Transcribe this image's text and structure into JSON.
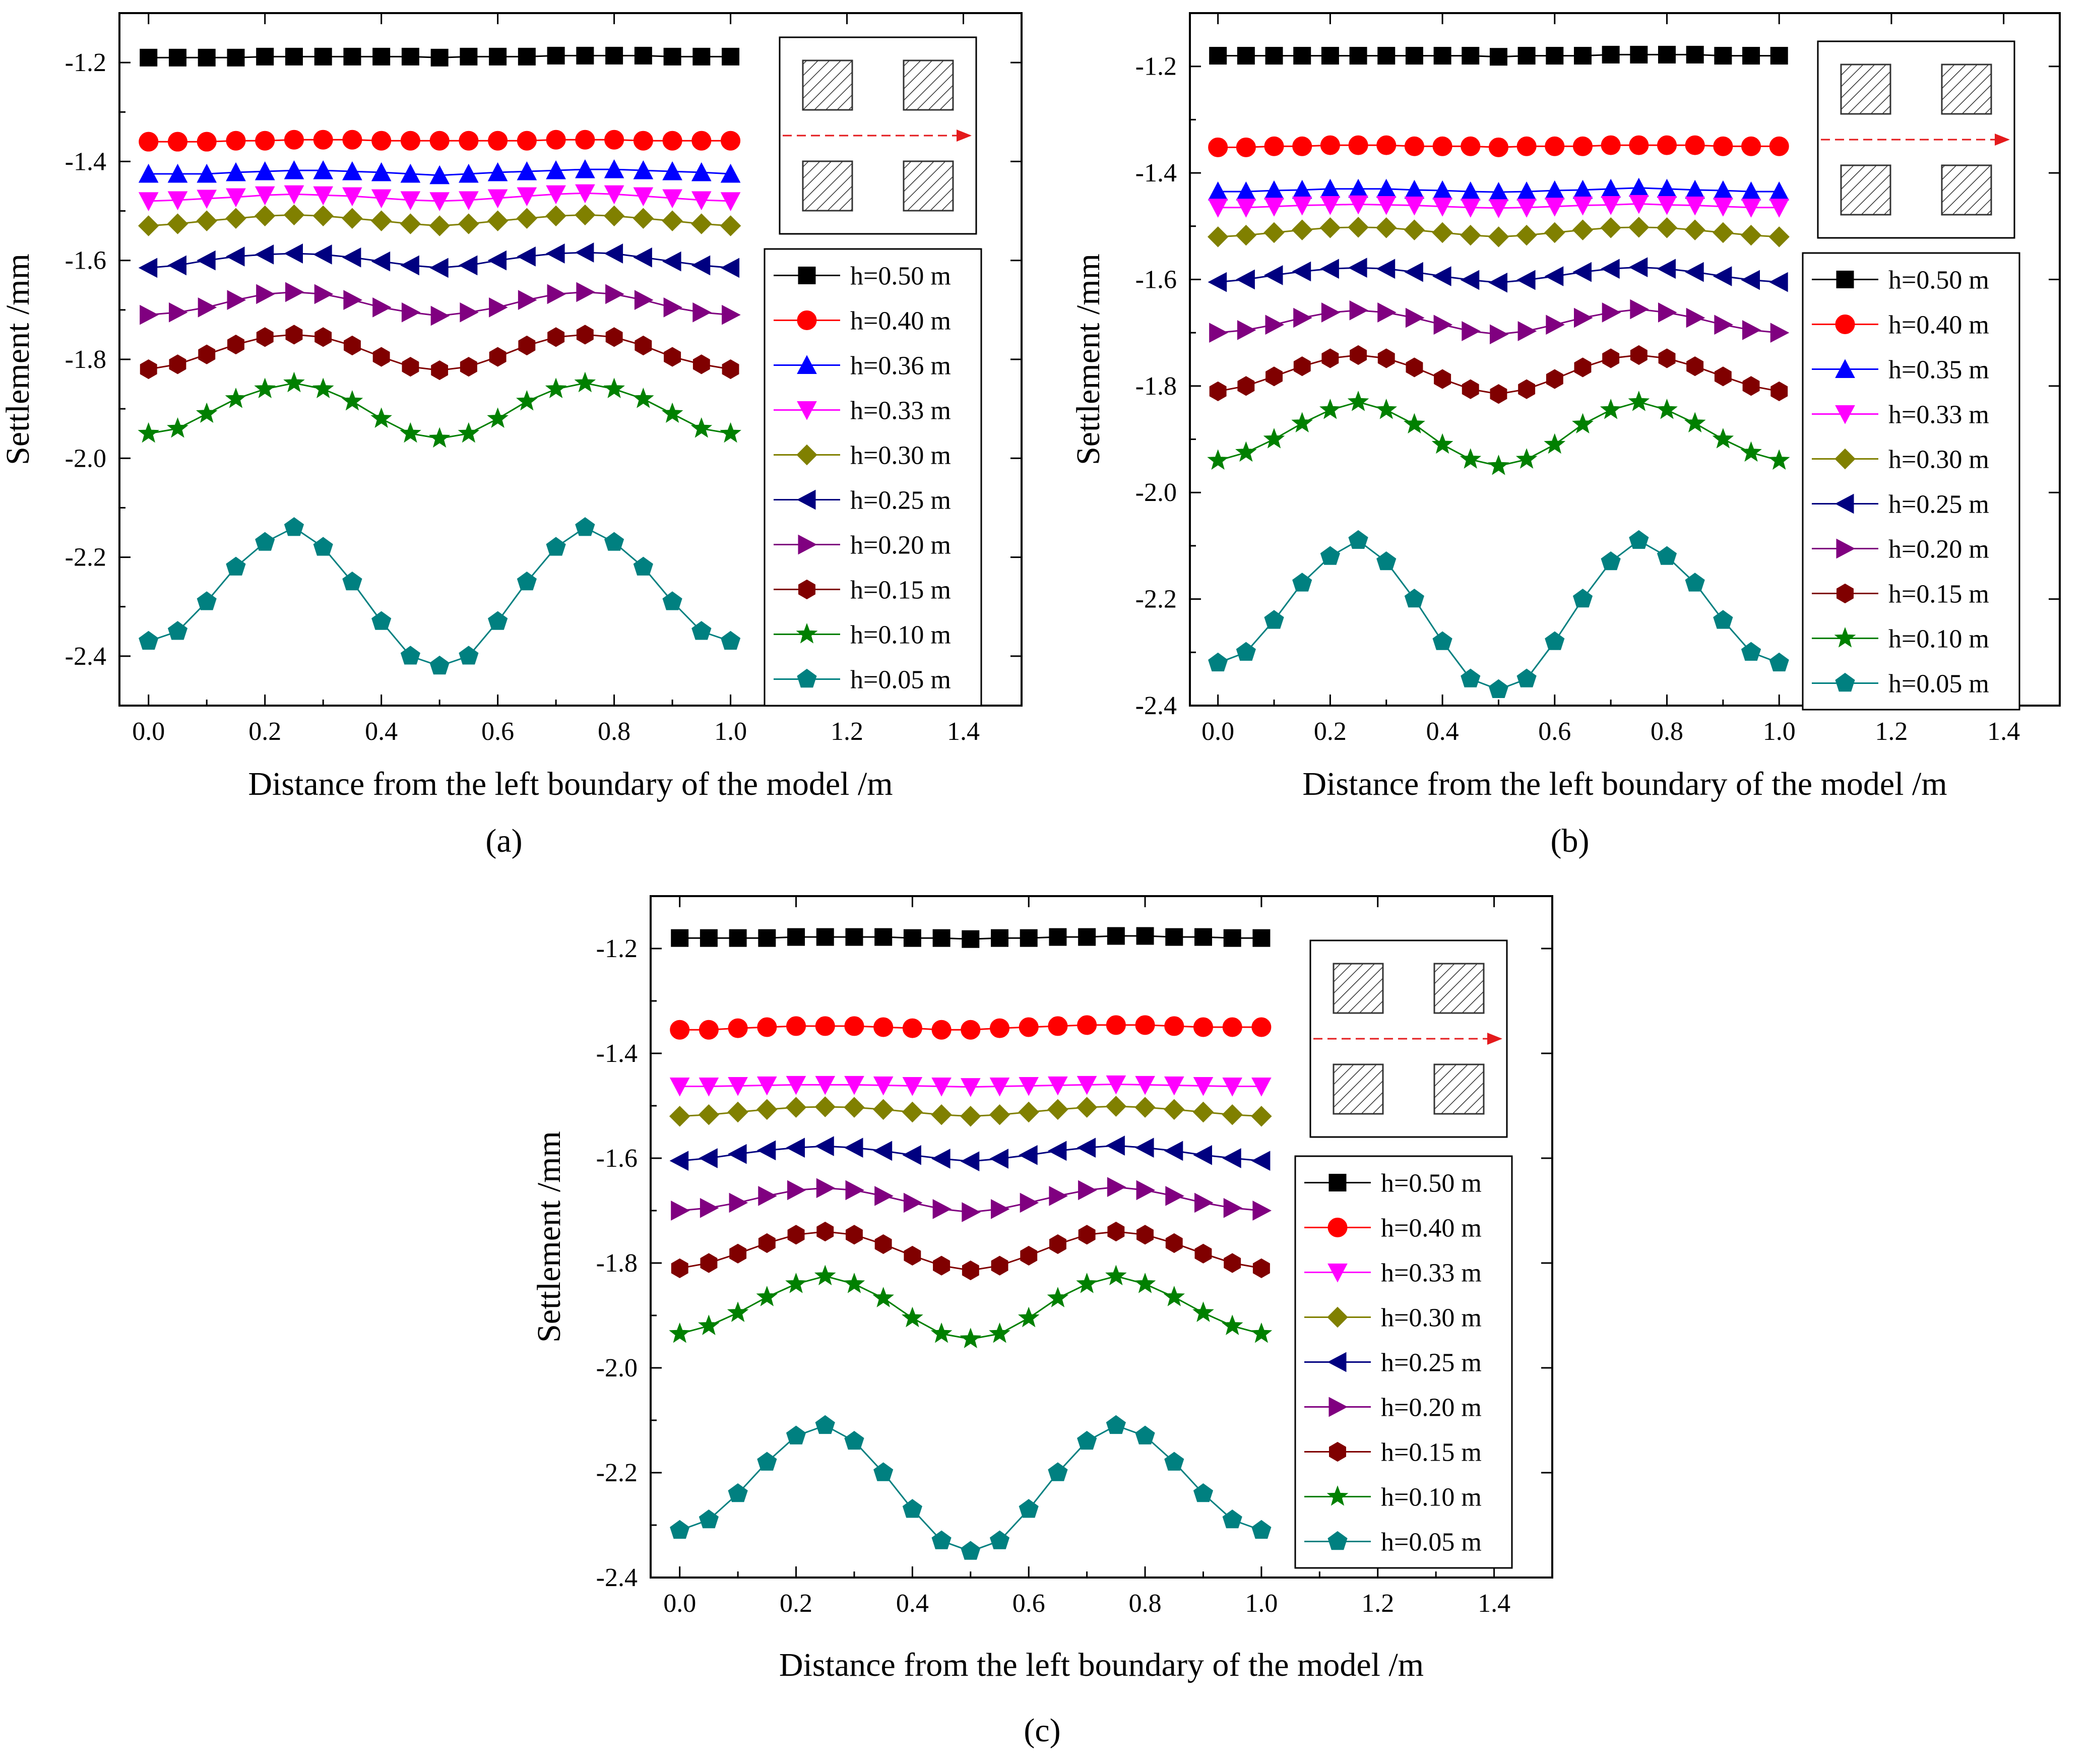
{
  "colors": {
    "0.50": "#000000",
    "0.40": "#ff0000",
    "0.36": "#0000ff",
    "0.35": "#0000ff",
    "0.33": "#ff00ff",
    "0.30": "#808000",
    "0.25": "#000080",
    "0.20": "#800080",
    "0.15": "#800000",
    "0.10": "#008000",
    "0.05": "#008080"
  },
  "inset": {
    "icon": "hatched-square-grid-with-red-dashed-arrow"
  },
  "chart_data": [
    {
      "type": "line",
      "panel": "a",
      "caption": "(a)",
      "xlabel": "Distance from the left boundary of the model /m",
      "ylabel": "Settlement /mm",
      "xlim": [
        -0.05,
        1.5
      ],
      "ylim": [
        -2.5,
        -1.1
      ],
      "xticks": [
        "0.0",
        "0.2",
        "0.4",
        "0.6",
        "0.8",
        "1.0",
        "1.2",
        "1.4"
      ],
      "yticks": [
        "-1.2",
        "-1.4",
        "-1.6",
        "-1.8",
        "-2.0",
        "-2.2",
        "-2.4"
      ],
      "legend_location": "right, below inset",
      "x": [
        0,
        0.05,
        0.1,
        0.15,
        0.2,
        0.25,
        0.3,
        0.35,
        0.4,
        0.45,
        0.5,
        0.55,
        0.6,
        0.65,
        0.7,
        0.75,
        0.8,
        0.85,
        0.9,
        0.95,
        1.0
      ],
      "series": [
        {
          "name": "h=0.50 m",
          "h": "0.50",
          "marker": "square",
          "values": [
            -1.19,
            -1.19,
            -1.19,
            -1.19,
            -1.188,
            -1.188,
            -1.188,
            -1.188,
            -1.188,
            -1.188,
            -1.19,
            -1.188,
            -1.188,
            -1.188,
            -1.186,
            -1.186,
            -1.186,
            -1.186,
            -1.188,
            -1.188,
            -1.188
          ]
        },
        {
          "name": "h=0.40 m",
          "h": "0.40",
          "marker": "circle",
          "values": [
            -1.36,
            -1.36,
            -1.36,
            -1.358,
            -1.358,
            -1.356,
            -1.356,
            -1.356,
            -1.358,
            -1.358,
            -1.358,
            -1.358,
            -1.358,
            -1.358,
            -1.356,
            -1.356,
            -1.356,
            -1.358,
            -1.358,
            -1.358,
            -1.358
          ]
        },
        {
          "name": "h=0.36 m",
          "h": "0.36",
          "marker": "triangle-up",
          "values": [
            -1.425,
            -1.425,
            -1.425,
            -1.422,
            -1.42,
            -1.418,
            -1.418,
            -1.42,
            -1.422,
            -1.425,
            -1.428,
            -1.425,
            -1.422,
            -1.42,
            -1.418,
            -1.416,
            -1.416,
            -1.418,
            -1.42,
            -1.422,
            -1.425
          ]
        },
        {
          "name": "h=0.33 m",
          "h": "0.33",
          "marker": "triangle-down",
          "values": [
            -1.48,
            -1.478,
            -1.475,
            -1.472,
            -1.468,
            -1.466,
            -1.468,
            -1.47,
            -1.474,
            -1.478,
            -1.48,
            -1.478,
            -1.474,
            -1.47,
            -1.466,
            -1.464,
            -1.466,
            -1.47,
            -1.474,
            -1.478,
            -1.48
          ]
        },
        {
          "name": "h=0.30 m",
          "h": "0.30",
          "marker": "diamond",
          "values": [
            -1.53,
            -1.526,
            -1.52,
            -1.515,
            -1.51,
            -1.508,
            -1.51,
            -1.515,
            -1.52,
            -1.526,
            -1.53,
            -1.526,
            -1.52,
            -1.515,
            -1.51,
            -1.508,
            -1.51,
            -1.515,
            -1.52,
            -1.526,
            -1.53
          ]
        },
        {
          "name": "h=0.25 m",
          "h": "0.25",
          "marker": "triangle-left",
          "values": [
            -1.615,
            -1.61,
            -1.6,
            -1.592,
            -1.588,
            -1.586,
            -1.588,
            -1.594,
            -1.602,
            -1.61,
            -1.615,
            -1.61,
            -1.6,
            -1.592,
            -1.586,
            -1.584,
            -1.586,
            -1.594,
            -1.602,
            -1.61,
            -1.615
          ]
        },
        {
          "name": "h=0.20 m",
          "h": "0.20",
          "marker": "triangle-right",
          "values": [
            -1.71,
            -1.705,
            -1.695,
            -1.68,
            -1.668,
            -1.664,
            -1.668,
            -1.68,
            -1.695,
            -1.705,
            -1.712,
            -1.705,
            -1.695,
            -1.68,
            -1.668,
            -1.664,
            -1.668,
            -1.68,
            -1.695,
            -1.705,
            -1.71
          ]
        },
        {
          "name": "h=0.15 m",
          "h": "0.15",
          "marker": "hexagon",
          "values": [
            -1.82,
            -1.81,
            -1.79,
            -1.77,
            -1.755,
            -1.75,
            -1.755,
            -1.772,
            -1.795,
            -1.815,
            -1.822,
            -1.815,
            -1.795,
            -1.772,
            -1.755,
            -1.75,
            -1.755,
            -1.772,
            -1.795,
            -1.81,
            -1.82
          ]
        },
        {
          "name": "h=0.10 m",
          "h": "0.10",
          "marker": "star",
          "values": [
            -1.95,
            -1.94,
            -1.91,
            -1.88,
            -1.86,
            -1.848,
            -1.86,
            -1.885,
            -1.92,
            -1.95,
            -1.96,
            -1.95,
            -1.92,
            -1.885,
            -1.86,
            -1.848,
            -1.86,
            -1.88,
            -1.91,
            -1.94,
            -1.95
          ]
        },
        {
          "name": "h=0.05 m",
          "h": "0.05",
          "marker": "pentagon",
          "values": [
            -2.37,
            -2.35,
            -2.29,
            -2.22,
            -2.17,
            -2.14,
            -2.18,
            -2.25,
            -2.33,
            -2.4,
            -2.42,
            -2.4,
            -2.33,
            -2.25,
            -2.18,
            -2.14,
            -2.17,
            -2.22,
            -2.29,
            -2.35,
            -2.37
          ]
        }
      ]
    },
    {
      "type": "line",
      "panel": "b",
      "caption": "(b)",
      "xlabel": "Distance from the left boundary of the model /m",
      "ylabel": "Settlement /mm",
      "xlim": [
        -0.05,
        1.5
      ],
      "ylim": [
        -2.4,
        -1.1
      ],
      "xticks": [
        "0.0",
        "0.2",
        "0.4",
        "0.6",
        "0.8",
        "1.0",
        "1.2",
        "1.4"
      ],
      "yticks": [
        "-1.2",
        "-1.4",
        "-1.6",
        "-1.8",
        "-2.0",
        "-2.2",
        "-2.4"
      ],
      "legend_location": "right, below inset",
      "x": [
        0,
        0.05,
        0.1,
        0.15,
        0.2,
        0.25,
        0.3,
        0.35,
        0.4,
        0.45,
        0.5,
        0.55,
        0.6,
        0.65,
        0.7,
        0.75,
        0.8,
        0.85,
        0.9,
        0.95,
        1.0
      ],
      "series": [
        {
          "name": "h=0.50 m",
          "h": "0.50",
          "marker": "square",
          "values": [
            -1.18,
            -1.18,
            -1.18,
            -1.18,
            -1.18,
            -1.18,
            -1.18,
            -1.18,
            -1.18,
            -1.18,
            -1.182,
            -1.18,
            -1.18,
            -1.18,
            -1.178,
            -1.178,
            -1.178,
            -1.178,
            -1.18,
            -1.18,
            -1.18
          ]
        },
        {
          "name": "h=0.40 m",
          "h": "0.40",
          "marker": "circle",
          "values": [
            -1.352,
            -1.352,
            -1.35,
            -1.35,
            -1.348,
            -1.348,
            -1.348,
            -1.35,
            -1.35,
            -1.35,
            -1.352,
            -1.35,
            -1.35,
            -1.35,
            -1.348,
            -1.348,
            -1.348,
            -1.348,
            -1.35,
            -1.35,
            -1.35
          ]
        },
        {
          "name": "h=0.35 m",
          "h": "0.35",
          "marker": "triangle-up",
          "values": [
            -1.435,
            -1.435,
            -1.433,
            -1.432,
            -1.43,
            -1.43,
            -1.43,
            -1.432,
            -1.433,
            -1.435,
            -1.436,
            -1.435,
            -1.433,
            -1.432,
            -1.43,
            -1.428,
            -1.43,
            -1.432,
            -1.433,
            -1.435,
            -1.435
          ]
        },
        {
          "name": "h=0.33 m",
          "h": "0.33",
          "marker": "triangle-down",
          "values": [
            -1.465,
            -1.465,
            -1.463,
            -1.461,
            -1.46,
            -1.459,
            -1.46,
            -1.461,
            -1.463,
            -1.465,
            -1.466,
            -1.465,
            -1.463,
            -1.461,
            -1.46,
            -1.458,
            -1.46,
            -1.461,
            -1.463,
            -1.465,
            -1.465
          ]
        },
        {
          "name": "h=0.30 m",
          "h": "0.30",
          "marker": "diamond",
          "values": [
            -1.52,
            -1.517,
            -1.512,
            -1.507,
            -1.503,
            -1.502,
            -1.503,
            -1.507,
            -1.512,
            -1.517,
            -1.52,
            -1.517,
            -1.512,
            -1.507,
            -1.503,
            -1.502,
            -1.503,
            -1.507,
            -1.512,
            -1.517,
            -1.52
          ]
        },
        {
          "name": "h=0.25 m",
          "h": "0.25",
          "marker": "triangle-left",
          "values": [
            -1.605,
            -1.6,
            -1.592,
            -1.585,
            -1.58,
            -1.578,
            -1.58,
            -1.586,
            -1.594,
            -1.601,
            -1.606,
            -1.601,
            -1.594,
            -1.586,
            -1.58,
            -1.577,
            -1.58,
            -1.586,
            -1.594,
            -1.601,
            -1.605
          ]
        },
        {
          "name": "h=0.20 m",
          "h": "0.20",
          "marker": "triangle-right",
          "values": [
            -1.7,
            -1.695,
            -1.685,
            -1.672,
            -1.662,
            -1.658,
            -1.662,
            -1.672,
            -1.685,
            -1.697,
            -1.703,
            -1.697,
            -1.685,
            -1.672,
            -1.662,
            -1.656,
            -1.662,
            -1.672,
            -1.685,
            -1.695,
            -1.7
          ]
        },
        {
          "name": "h=0.15 m",
          "h": "0.15",
          "marker": "hexagon",
          "values": [
            -1.81,
            -1.8,
            -1.782,
            -1.763,
            -1.748,
            -1.742,
            -1.748,
            -1.765,
            -1.787,
            -1.806,
            -1.815,
            -1.806,
            -1.787,
            -1.765,
            -1.748,
            -1.742,
            -1.748,
            -1.763,
            -1.782,
            -1.8,
            -1.81
          ]
        },
        {
          "name": "h=0.10 m",
          "h": "0.10",
          "marker": "star",
          "values": [
            -1.94,
            -1.925,
            -1.9,
            -1.87,
            -1.845,
            -1.83,
            -1.845,
            -1.872,
            -1.91,
            -1.938,
            -1.95,
            -1.938,
            -1.91,
            -1.872,
            -1.845,
            -1.83,
            -1.845,
            -1.87,
            -1.9,
            -1.925,
            -1.94
          ]
        },
        {
          "name": "h=0.05 m",
          "h": "0.05",
          "marker": "pentagon",
          "values": [
            -2.32,
            -2.3,
            -2.24,
            -2.17,
            -2.12,
            -2.09,
            -2.13,
            -2.2,
            -2.28,
            -2.35,
            -2.37,
            -2.35,
            -2.28,
            -2.2,
            -2.13,
            -2.09,
            -2.12,
            -2.17,
            -2.24,
            -2.3,
            -2.32
          ]
        }
      ]
    },
    {
      "type": "line",
      "panel": "c",
      "caption": "(c)",
      "xlabel": "Distance from the left boundary of the model /m",
      "ylabel": "Settlement /mm",
      "xlim": [
        -0.05,
        1.5
      ],
      "ylim": [
        -2.4,
        -1.1
      ],
      "xticks": [
        "0.0",
        "0.2",
        "0.4",
        "0.6",
        "0.8",
        "1.0",
        "1.2",
        "1.4"
      ],
      "yticks": [
        "-1.2",
        "-1.4",
        "-1.6",
        "-1.8",
        "-2.0",
        "-2.2",
        "-2.4"
      ],
      "legend_location": "right, below inset",
      "x": [
        0,
        0.05,
        0.1,
        0.15,
        0.2,
        0.25,
        0.3,
        0.35,
        0.4,
        0.45,
        0.5,
        0.55,
        0.6,
        0.65,
        0.7,
        0.75,
        0.8,
        0.85,
        0.9,
        0.95,
        1.0
      ],
      "series": [
        {
          "name": "h=0.50 m",
          "h": "0.50",
          "marker": "square",
          "values": [
            -1.18,
            -1.18,
            -1.18,
            -1.18,
            -1.178,
            -1.178,
            -1.178,
            -1.178,
            -1.18,
            -1.18,
            -1.182,
            -1.18,
            -1.18,
            -1.178,
            -1.178,
            -1.176,
            -1.176,
            -1.178,
            -1.178,
            -1.18,
            -1.18
          ]
        },
        {
          "name": "h=0.40 m",
          "h": "0.40",
          "marker": "circle",
          "values": [
            -1.355,
            -1.355,
            -1.352,
            -1.35,
            -1.348,
            -1.348,
            -1.348,
            -1.35,
            -1.352,
            -1.355,
            -1.355,
            -1.352,
            -1.35,
            -1.348,
            -1.346,
            -1.346,
            -1.346,
            -1.348,
            -1.35,
            -1.35,
            -1.35
          ]
        },
        {
          "name": "h=0.33 m",
          "h": "0.33",
          "marker": "triangle-down",
          "values": [
            -1.463,
            -1.463,
            -1.462,
            -1.461,
            -1.46,
            -1.46,
            -1.46,
            -1.461,
            -1.462,
            -1.463,
            -1.464,
            -1.463,
            -1.462,
            -1.461,
            -1.46,
            -1.459,
            -1.46,
            -1.461,
            -1.462,
            -1.463,
            -1.463
          ]
        },
        {
          "name": "h=0.30 m",
          "h": "0.30",
          "marker": "diamond",
          "values": [
            -1.52,
            -1.517,
            -1.512,
            -1.507,
            -1.503,
            -1.502,
            -1.503,
            -1.507,
            -1.512,
            -1.517,
            -1.52,
            -1.517,
            -1.512,
            -1.507,
            -1.503,
            -1.501,
            -1.503,
            -1.507,
            -1.512,
            -1.517,
            -1.52
          ]
        },
        {
          "name": "h=0.25 m",
          "h": "0.25",
          "marker": "triangle-left",
          "values": [
            -1.605,
            -1.6,
            -1.592,
            -1.585,
            -1.58,
            -1.577,
            -1.58,
            -1.586,
            -1.594,
            -1.601,
            -1.606,
            -1.601,
            -1.594,
            -1.586,
            -1.58,
            -1.576,
            -1.58,
            -1.586,
            -1.594,
            -1.6,
            -1.605
          ]
        },
        {
          "name": "h=0.20 m",
          "h": "0.20",
          "marker": "triangle-right",
          "values": [
            -1.7,
            -1.695,
            -1.685,
            -1.672,
            -1.661,
            -1.657,
            -1.661,
            -1.672,
            -1.685,
            -1.697,
            -1.703,
            -1.697,
            -1.685,
            -1.672,
            -1.661,
            -1.655,
            -1.661,
            -1.672,
            -1.685,
            -1.695,
            -1.7
          ]
        },
        {
          "name": "h=0.15 m",
          "h": "0.15",
          "marker": "hexagon",
          "values": [
            -1.81,
            -1.8,
            -1.782,
            -1.762,
            -1.746,
            -1.74,
            -1.746,
            -1.764,
            -1.786,
            -1.805,
            -1.814,
            -1.805,
            -1.786,
            -1.764,
            -1.746,
            -1.74,
            -1.746,
            -1.762,
            -1.782,
            -1.8,
            -1.81
          ]
        },
        {
          "name": "h=0.10 m",
          "h": "0.10",
          "marker": "star",
          "values": [
            -1.935,
            -1.92,
            -1.895,
            -1.865,
            -1.84,
            -1.825,
            -1.84,
            -1.867,
            -1.905,
            -1.935,
            -1.945,
            -1.935,
            -1.905,
            -1.867,
            -1.84,
            -1.825,
            -1.84,
            -1.865,
            -1.895,
            -1.92,
            -1.935
          ]
        },
        {
          "name": "h=0.05 m",
          "h": "0.05",
          "marker": "pentagon",
          "values": [
            -2.31,
            -2.29,
            -2.24,
            -2.18,
            -2.13,
            -2.11,
            -2.14,
            -2.2,
            -2.27,
            -2.33,
            -2.35,
            -2.33,
            -2.27,
            -2.2,
            -2.14,
            -2.11,
            -2.13,
            -2.18,
            -2.24,
            -2.29,
            -2.31
          ]
        }
      ]
    }
  ]
}
